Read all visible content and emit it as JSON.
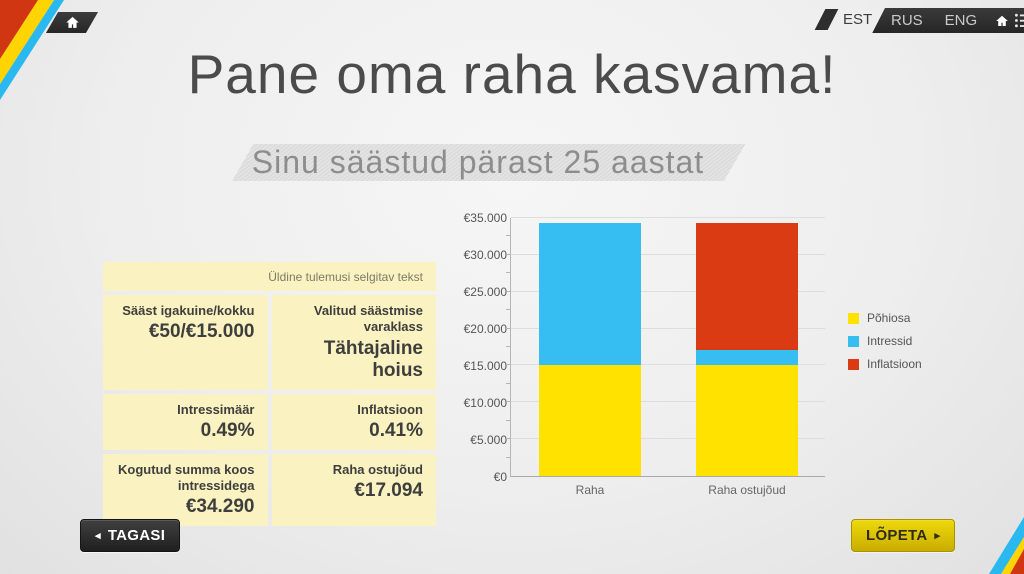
{
  "header": {
    "languages": [
      {
        "code": "EST",
        "active": true
      },
      {
        "code": "RUS",
        "active": false
      },
      {
        "code": "ENG",
        "active": false
      }
    ]
  },
  "page": {
    "title": "Pane oma raha kasvama!",
    "subtitle": "Sinu säästud pärast 25 aastat"
  },
  "summary_table": {
    "note": "Üldine tulemusi selgitav tekst",
    "cells": [
      {
        "label": "Sääst igakuine/kokku",
        "value": "€50/€15.000"
      },
      {
        "label": "Valitud säästmise varaklass",
        "value": "Tähtajaline hoius"
      },
      {
        "label": "Intressimäär",
        "value": "0.49%"
      },
      {
        "label": "Inflatsioon",
        "value": "0.41%"
      },
      {
        "label": "Kogutud summa koos intressidega",
        "value": "€34.290"
      },
      {
        "label": "Raha ostujõud",
        "value": "€17.094"
      }
    ]
  },
  "chart_data": {
    "type": "bar",
    "stacked": true,
    "categories": [
      "Raha",
      "Raha ostujõud"
    ],
    "series": [
      {
        "name": "Põhiosa",
        "color_key": "principal_yellow",
        "values": [
          15000,
          15000
        ]
      },
      {
        "name": "Intressid",
        "color_key": "interest_blue",
        "values": [
          19290,
          2094
        ]
      },
      {
        "name": "Inflatsioon",
        "color_key": "inflation_red",
        "values": [
          0,
          17196
        ]
      }
    ],
    "ylim": [
      0,
      35000
    ],
    "ytick_step": 5000,
    "ytick_minor_step": 2500,
    "ytick_labels": [
      "€0",
      "€5.000",
      "€10.000",
      "€15.000",
      "€20.000",
      "€25.000",
      "€30.000",
      "€35.000"
    ],
    "grid": true,
    "legend_position": "right"
  },
  "buttons": {
    "back_label": "TAGASI",
    "back_arrow": "◂",
    "finish_label": "LÕPETA",
    "finish_arrow": "▸"
  },
  "colors": {
    "principal_yellow": "#ffe200",
    "interest_blue": "#36bdf2",
    "inflation_red": "#db3b13"
  }
}
